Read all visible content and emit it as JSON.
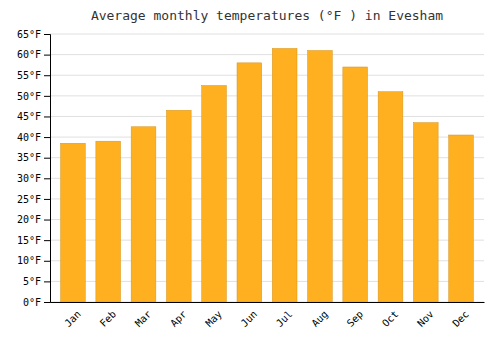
{
  "chart_data": {
    "type": "bar",
    "title": "Average monthly temperatures (°F ) in Evesham",
    "categories": [
      "Jan",
      "Feb",
      "Mar",
      "Apr",
      "May",
      "Jun",
      "Jul",
      "Aug",
      "Sep",
      "Oct",
      "Nov",
      "Dec"
    ],
    "values": [
      38.5,
      39.0,
      42.5,
      46.5,
      52.5,
      58.0,
      61.5,
      61.0,
      57.0,
      51.0,
      43.5,
      40.5
    ],
    "color": "#FFB020",
    "ylim": [
      0,
      65
    ],
    "yticks": [
      {
        "value": 0,
        "label": "0°F"
      },
      {
        "value": 5,
        "label": "5°F"
      },
      {
        "value": 10,
        "label": "10°F"
      },
      {
        "value": 15,
        "label": "15°F"
      },
      {
        "value": 20,
        "label": "20°F"
      },
      {
        "value": 25,
        "label": "25°F"
      },
      {
        "value": 30,
        "label": "30°F"
      },
      {
        "value": 35,
        "label": "35°F"
      },
      {
        "value": 40,
        "label": "40°F"
      },
      {
        "value": 45,
        "label": "45°F"
      },
      {
        "value": 50,
        "label": "50°F"
      },
      {
        "value": 55,
        "label": "55°F"
      },
      {
        "value": 60,
        "label": "60°F"
      },
      {
        "value": 65,
        "label": "65°F"
      }
    ],
    "grid": true
  }
}
